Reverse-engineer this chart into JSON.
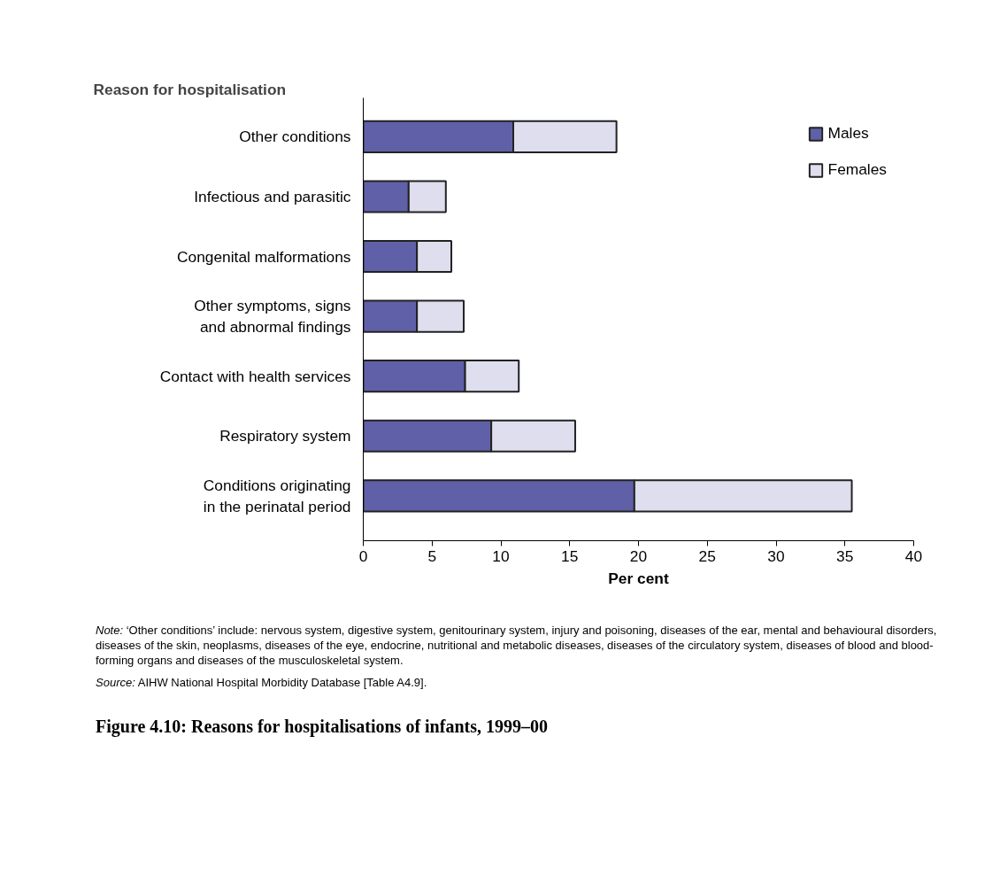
{
  "chart_data": {
    "type": "bar",
    "orientation": "horizontal",
    "stacked": true,
    "title": "Figure 4.10: Reasons for hospitalisations of infants, 1999–00",
    "ylabel": "Reason for hospitalisation",
    "xlabel": "Per cent",
    "categories": [
      "Other conditions",
      "Infectious and parasitic",
      "Congenital malformations",
      "Other symptoms, signs\nand abnormal findings",
      "Contact with health services",
      "Respiratory system",
      "Conditions originating\nin the perinatal period"
    ],
    "series": [
      {
        "name": "Males",
        "color": "#6060a8",
        "values": [
          10.9,
          3.3,
          3.9,
          3.9,
          7.4,
          9.3,
          19.7
        ]
      },
      {
        "name": "Females",
        "color": "#dedeef",
        "values": [
          7.5,
          2.7,
          2.5,
          3.4,
          3.9,
          6.1,
          15.8
        ]
      }
    ],
    "xlim": [
      0,
      40
    ],
    "xticks": [
      0,
      5,
      10,
      15,
      20,
      25,
      30,
      35,
      40
    ],
    "grid": false,
    "legend": "top right",
    "annotations": [
      "Note: ‘Other conditions’ include: nervous system, digestive system, genitourinary system, injury and poisoning, diseases of the ear, mental and behavioural disorders, diseases of the skin, neoplasms, diseases of the eye, endocrine, nutritional and metabolic diseases, diseases of the circulatory system, diseases of blood and blood-forming organs and diseases of the musculoskeletal system.",
      "Source: AIHW National Hospital Morbidity Database [Table A4.9]."
    ]
  }
}
